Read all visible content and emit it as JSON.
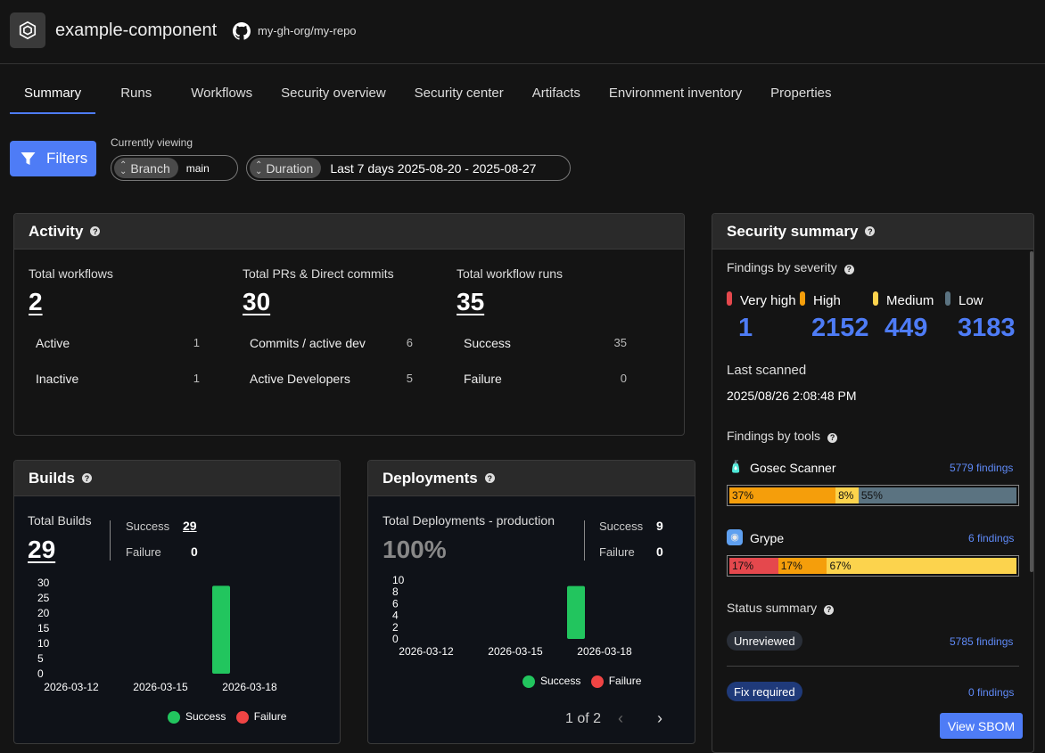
{
  "header": {
    "app_name": "example-component",
    "repo": "my-gh-org/my-repo"
  },
  "tabs": [
    {
      "label": "Summary",
      "active": true
    },
    {
      "label": "Runs"
    },
    {
      "label": "Workflows"
    },
    {
      "label": "Security overview"
    },
    {
      "label": "Security center"
    },
    {
      "label": "Artifacts"
    },
    {
      "label": "Environment inventory"
    },
    {
      "label": "Properties"
    }
  ],
  "filters": {
    "button_label": "Filters",
    "currently_viewing_label": "Currently viewing",
    "branch_key": "Branch",
    "branch_value": "main",
    "duration_key": "Duration",
    "duration_value": "Last 7 days 2025-08-20 - 2025-08-27"
  },
  "activity": {
    "title": "Activity",
    "columns": [
      {
        "label": "Total workflows",
        "value": "2",
        "rows": [
          {
            "label": "Active",
            "value": "1"
          },
          {
            "label": "Inactive",
            "value": "1"
          }
        ]
      },
      {
        "label": "Total PRs & Direct commits",
        "value": "30",
        "rows": [
          {
            "label": "Commits / active dev",
            "value": "6"
          },
          {
            "label": "Active Developers",
            "value": "5"
          }
        ]
      },
      {
        "label": "Total workflow runs",
        "value": "35",
        "rows": [
          {
            "label": "Success",
            "value": "35"
          },
          {
            "label": "Failure",
            "value": "0"
          }
        ]
      }
    ]
  },
  "builds": {
    "title": "Builds",
    "total_label": "Total Builds",
    "total_value": "29",
    "success_label": "Success",
    "success_value": "29",
    "failure_label": "Failure",
    "failure_value": "0",
    "legend_success": "Success",
    "legend_failure": "Failure"
  },
  "deployments": {
    "title": "Deployments",
    "total_label": "Total Deployments - production",
    "total_value": "100%",
    "success_label": "Success",
    "success_value": "9",
    "failure_label": "Failure",
    "failure_value": "0",
    "legend_success": "Success",
    "legend_failure": "Failure",
    "pagination": "1 of 2"
  },
  "security": {
    "title": "Security summary",
    "findings_by_severity_label": "Findings by severity",
    "severities": [
      {
        "label": "Very high",
        "value": "1",
        "color": "#e5484d"
      },
      {
        "label": "High",
        "value": "2152",
        "color": "#f59e0b"
      },
      {
        "label": "Medium",
        "value": "449",
        "color": "#fcd34d"
      },
      {
        "label": "Low",
        "value": "3183",
        "color": "#5b7381"
      }
    ],
    "last_scanned_label": "Last scanned",
    "last_scanned_value": "2025/08/26 2:08:48 PM",
    "findings_by_tools_label": "Findings by tools",
    "tools": [
      {
        "name": "Gosec Scanner",
        "findings": "5779 findings",
        "segments": [
          {
            "label": "37%",
            "pct": 37,
            "color": "#f59e0b"
          },
          {
            "label": "8%",
            "pct": 8,
            "color": "#fcd34d"
          },
          {
            "label": "55%",
            "pct": 55,
            "color": "#5b7381"
          }
        ]
      },
      {
        "name": "Grype",
        "findings": "6 findings",
        "segments": [
          {
            "label": "17%",
            "pct": 17,
            "color": "#e5484d"
          },
          {
            "label": "17%",
            "pct": 17,
            "color": "#f59e0b"
          },
          {
            "label": "67%",
            "pct": 66,
            "color": "#fcd34d"
          }
        ]
      }
    ],
    "status_summary_label": "Status summary",
    "statuses": [
      {
        "label": "Unreviewed",
        "findings": "5785 findings"
      },
      {
        "label": "Fix required",
        "findings": "0 findings"
      }
    ],
    "view_sbom_label": "View SBOM"
  },
  "chart_data": [
    {
      "type": "bar",
      "title": "",
      "categories": [
        "2026-03-12",
        "2026-03-15",
        "2026-03-18"
      ],
      "ylim": [
        0,
        30
      ],
      "yticks": [
        "30",
        "25",
        "20",
        "15",
        "10",
        "5",
        "0"
      ],
      "series": [
        {
          "name": "Success",
          "color": "#22c55e",
          "values": [
            0,
            0,
            29
          ]
        },
        {
          "name": "Failure",
          "color": "#ef4444",
          "values": [
            0,
            0,
            0
          ]
        }
      ]
    },
    {
      "type": "bar",
      "title": "",
      "categories": [
        "2026-03-12",
        "2026-03-15",
        "2026-03-18"
      ],
      "ylim": [
        0,
        10
      ],
      "yticks": [
        "10",
        "8",
        "6",
        "4",
        "2",
        "0"
      ],
      "series": [
        {
          "name": "Success",
          "color": "#22c55e",
          "values": [
            0,
            0,
            9
          ]
        },
        {
          "name": "Failure",
          "color": "#ef4444",
          "values": [
            0,
            0,
            0
          ]
        }
      ]
    }
  ]
}
